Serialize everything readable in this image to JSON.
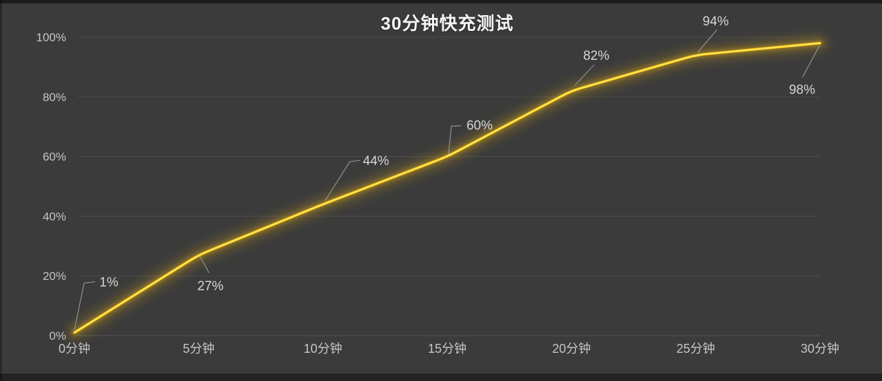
{
  "chart_data": {
    "type": "line",
    "title": "30分钟快充测试",
    "categories": [
      "0分钟",
      "5分钟",
      "10分钟",
      "15分钟",
      "20分钟",
      "25分钟",
      "30分钟"
    ],
    "values": [
      1,
      27,
      44,
      60,
      82,
      94,
      98
    ],
    "point_labels": [
      "1%",
      "27%",
      "44%",
      "60%",
      "82%",
      "94%",
      "98%"
    ],
    "xlabel": "",
    "ylabel": "",
    "ylim": [
      0,
      100
    ],
    "yticks": [
      {
        "value": 0,
        "label": "0%"
      },
      {
        "value": 20,
        "label": "20%"
      },
      {
        "value": 40,
        "label": "40%"
      },
      {
        "value": 60,
        "label": "60%"
      },
      {
        "value": 80,
        "label": "80%"
      },
      {
        "value": 100,
        "label": "100%"
      }
    ],
    "grid": "horizontal",
    "legend": "none",
    "colors": {
      "background": "#3b3b3b",
      "line": "#ffd21e",
      "line_highlight": "#ffe97a",
      "line_glow": "#b8901a",
      "grid": "#545454",
      "axis_text": "#c6c6c6",
      "data_label_text": "#d6d6d6",
      "leader_line": "#a0a0a0",
      "title_text": "#f5f5f5"
    }
  }
}
